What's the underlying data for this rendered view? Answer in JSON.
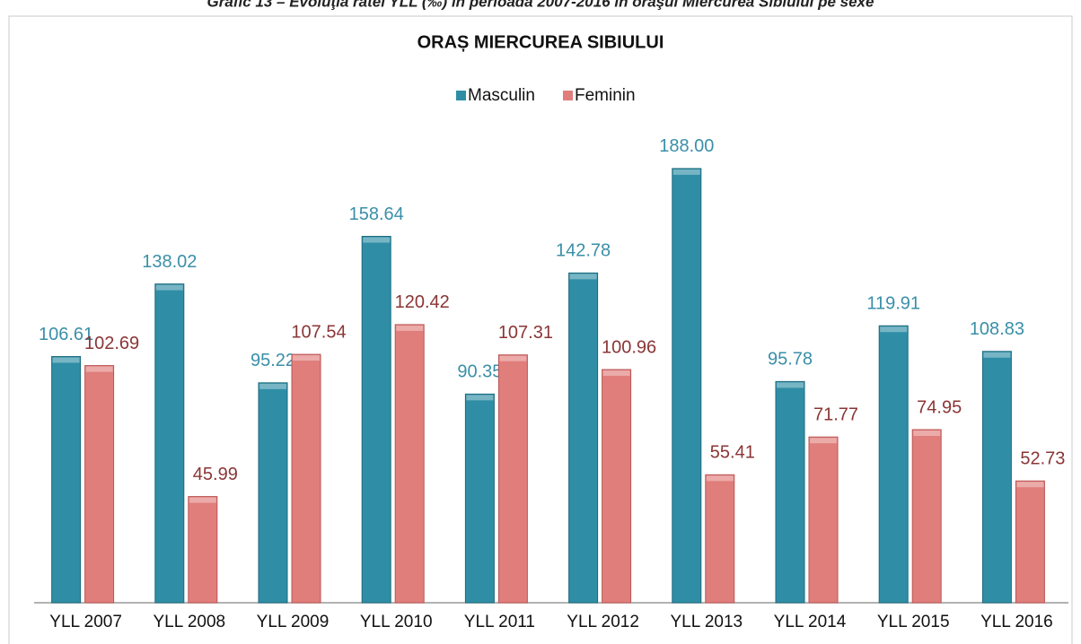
{
  "caption": "Grafic 13 – Evoluţia ratei YLL (‰) în perioada 2007-2016 în oraşul Miercurea Sibiului pe sexe",
  "chart_data": {
    "type": "bar",
    "title": "ORAȘ MIERCUREA SIBIULUI",
    "categories": [
      "YLL 2007",
      "YLL 2008",
      "YLL 2009",
      "YLL 2010",
      "YLL 2011",
      "YLL 2012",
      "YLL 2013",
      "YLL 2014",
      "YLL 2015",
      "YLL 2016"
    ],
    "series": [
      {
        "name": "Masculin",
        "color": "#2f8ea6",
        "label_color": "#3a8fa8",
        "values": [
          106.61,
          138.02,
          95.22,
          158.64,
          90.35,
          142.78,
          188.0,
          95.78,
          119.91,
          108.83
        ],
        "value_labels": [
          "106.61",
          "138.02",
          "95.22",
          "158.64",
          "90.35",
          "142.78",
          "188.00",
          "95.78",
          "119.91",
          "108.83"
        ]
      },
      {
        "name": "Feminin",
        "color": "#e07e7c",
        "label_color": "#8b3535",
        "values": [
          102.69,
          45.99,
          107.54,
          120.42,
          107.31,
          100.96,
          55.41,
          71.77,
          74.95,
          52.73
        ],
        "value_labels": [
          "102.69",
          "45.99",
          "107.54",
          "120.42",
          "107.31",
          "100.96",
          "55.41",
          "71.77",
          "74.95",
          "52.73"
        ]
      }
    ],
    "ylim": [
      0,
      200
    ],
    "legend": "top"
  }
}
